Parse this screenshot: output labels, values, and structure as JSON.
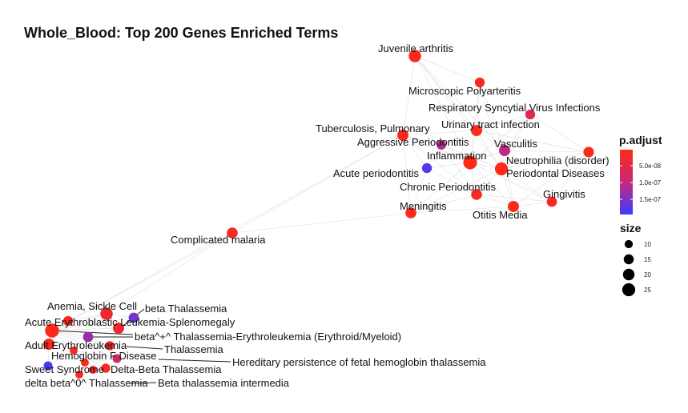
{
  "title": "Whole_Blood: Top 200 Genes Enriched Terms",
  "legend": {
    "color_title": "p.adjust",
    "color_ticks": [
      "5.0e-08",
      "1.0e-07",
      "1.5e-07"
    ],
    "color_tick_values": [
      5e-08,
      1e-07,
      1.5e-07
    ],
    "color_range": [
      2.4e-09,
      1.95e-07
    ],
    "color_low": "#ff2a14",
    "color_high": "#3c3cff",
    "size_title": "size",
    "size_ticks": [
      "10",
      "15",
      "20",
      "25"
    ],
    "size_tick_values": [
      10,
      15,
      20,
      25
    ]
  },
  "nodes": [
    {
      "label": "Juvenile arthritis",
      "p_adjust": 1e-08,
      "size": 22
    },
    {
      "label": "Microscopic Polyarteritis",
      "p_adjust": 1e-08,
      "size": 14
    },
    {
      "label": "Respiratory Syncytial Virus Infections",
      "p_adjust": 6e-08,
      "size": 14
    },
    {
      "label": "Tuberculosis, Pulmonary",
      "p_adjust": 1e-08,
      "size": 18
    },
    {
      "label": "Urinary tract infection",
      "p_adjust": 1e-08,
      "size": 18
    },
    {
      "label": "Aggressive Periodontitis",
      "p_adjust": 1.1e-07,
      "size": 13
    },
    {
      "label": "Vasculitis",
      "p_adjust": 1.05e-07,
      "size": 18
    },
    {
      "label": "Neutrophilia (disorder)",
      "p_adjust": 1e-08,
      "size": 16
    },
    {
      "label": "Inflammation",
      "p_adjust": 5e-09,
      "size": 27
    },
    {
      "label": "Periodontal Diseases",
      "p_adjust": 5e-09,
      "size": 24
    },
    {
      "label": "Acute periodontitis",
      "p_adjust": 1.8e-07,
      "size": 14
    },
    {
      "label": "Chronic Periodontitis",
      "p_adjust": 2e-08,
      "size": 17
    },
    {
      "label": "Gingivitis",
      "p_adjust": 1.5e-08,
      "size": 15
    },
    {
      "label": "Otitis Media",
      "p_adjust": 1e-08,
      "size": 18
    },
    {
      "label": "Meningitis",
      "p_adjust": 1e-08,
      "size": 17
    },
    {
      "label": "Complicated malaria",
      "p_adjust": 2e-08,
      "size": 17
    },
    {
      "label": "Anemia, Sickle Cell",
      "p_adjust": 3e-08,
      "size": 22
    },
    {
      "label": "beta Thalassemia",
      "p_adjust": 1.6e-07,
      "size": 15
    },
    {
      "label": "Acute Erythroblastic Leukemia-Splenomegaly",
      "p_adjust": 1e-08,
      "size": 14
    },
    {
      "label": "beta^+^ Thalassemia-Erythroleukemia (Erythroid/Myeloid)",
      "p_adjust": 3e-08,
      "size": 18
    },
    {
      "label": "",
      "p_adjust": 5e-09,
      "size": 28
    },
    {
      "label": "",
      "p_adjust": 1.3e-07,
      "size": 15
    },
    {
      "label": "Adult Erythroleukemia",
      "p_adjust": 1e-08,
      "size": 18
    },
    {
      "label": "Thalassemia",
      "p_adjust": 3e-08,
      "size": 12
    },
    {
      "label": "",
      "p_adjust": 1e-08,
      "size": 9
    },
    {
      "label": "Hemoglobin F Disease",
      "p_adjust": 8e-08,
      "size": 11
    },
    {
      "label": "Sweet Syndrome",
      "p_adjust": 1.9e-07,
      "size": 11
    },
    {
      "label": "Hereditary persistence of fetal hemoglobin thalassemia",
      "p_adjust": 1e-08,
      "size": 9
    },
    {
      "label": "Delta-Beta Thalassemia",
      "p_adjust": 1e-08,
      "size": 12
    },
    {
      "label": "delta beta^0^ Thalassemia",
      "p_adjust": 1e-08,
      "size": 9
    },
    {
      "label": "Beta thalassemia intermedia",
      "p_adjust": 1e-08,
      "size": 9
    }
  ],
  "edges": [
    [
      0,
      1
    ],
    [
      0,
      3
    ],
    [
      0,
      4
    ],
    [
      0,
      8
    ],
    [
      0,
      9
    ],
    [
      0,
      6
    ],
    [
      1,
      4
    ],
    [
      1,
      6
    ],
    [
      1,
      8
    ],
    [
      1,
      9
    ],
    [
      2,
      4
    ],
    [
      2,
      6
    ],
    [
      2,
      8
    ],
    [
      2,
      9
    ],
    [
      2,
      7
    ],
    [
      3,
      4
    ],
    [
      3,
      5
    ],
    [
      3,
      8
    ],
    [
      3,
      10
    ],
    [
      3,
      14
    ],
    [
      3,
      11
    ],
    [
      4,
      5
    ],
    [
      4,
      6
    ],
    [
      4,
      8
    ],
    [
      4,
      9
    ],
    [
      4,
      7
    ],
    [
      5,
      8
    ],
    [
      5,
      9
    ],
    [
      5,
      10
    ],
    [
      5,
      11
    ],
    [
      6,
      8
    ],
    [
      6,
      9
    ],
    [
      6,
      7
    ],
    [
      6,
      13
    ],
    [
      7,
      9
    ],
    [
      7,
      12
    ],
    [
      7,
      13
    ],
    [
      8,
      9
    ],
    [
      8,
      10
    ],
    [
      8,
      11
    ],
    [
      8,
      13
    ],
    [
      8,
      14
    ],
    [
      8,
      12
    ],
    [
      9,
      11
    ],
    [
      9,
      12
    ],
    [
      9,
      13
    ],
    [
      9,
      14
    ],
    [
      10,
      11
    ],
    [
      10,
      14
    ],
    [
      11,
      13
    ],
    [
      11,
      14
    ],
    [
      11,
      12
    ],
    [
      12,
      13
    ],
    [
      13,
      14
    ],
    [
      3,
      15
    ],
    [
      14,
      15
    ],
    [
      15,
      16
    ],
    [
      15,
      20
    ],
    [
      3,
      20
    ],
    [
      16,
      17
    ],
    [
      16,
      18
    ],
    [
      16,
      19
    ],
    [
      16,
      20
    ],
    [
      16,
      21
    ],
    [
      17,
      19
    ],
    [
      17,
      20
    ],
    [
      18,
      20
    ],
    [
      18,
      21
    ],
    [
      18,
      22
    ],
    [
      19,
      20
    ],
    [
      19,
      21
    ],
    [
      19,
      23
    ],
    [
      20,
      21
    ],
    [
      20,
      22
    ],
    [
      20,
      23
    ],
    [
      20,
      24
    ],
    [
      20,
      25
    ],
    [
      21,
      22
    ],
    [
      21,
      23
    ],
    [
      21,
      25
    ],
    [
      22,
      24
    ],
    [
      22,
      26
    ],
    [
      23,
      25
    ],
    [
      24,
      25
    ],
    [
      24,
      28
    ],
    [
      25,
      27
    ],
    [
      25,
      28
    ],
    [
      26,
      24
    ],
    [
      27,
      28
    ],
    [
      28,
      29
    ],
    [
      28,
      30
    ],
    [
      29,
      30
    ]
  ]
}
